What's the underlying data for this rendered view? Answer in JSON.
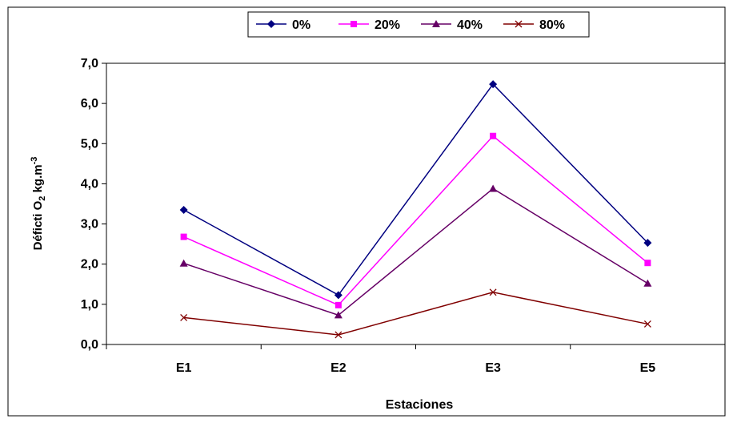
{
  "chart_data": {
    "type": "line",
    "categories": [
      "E1",
      "E2",
      "E3",
      "E5"
    ],
    "series": [
      {
        "name": "0%",
        "values": [
          3.35,
          1.23,
          6.48,
          2.53
        ],
        "color": "#000080",
        "marker": "diamond"
      },
      {
        "name": "20%",
        "values": [
          2.68,
          0.98,
          5.19,
          2.03
        ],
        "color": "#FF00FF",
        "marker": "square"
      },
      {
        "name": "40%",
        "values": [
          2.02,
          0.73,
          3.88,
          1.52
        ],
        "color": "#660066",
        "marker": "triangle"
      },
      {
        "name": "80%",
        "values": [
          0.67,
          0.24,
          1.3,
          0.51
        ],
        "color": "#800000",
        "marker": "x"
      }
    ],
    "yticks": [
      "0,0",
      "1,0",
      "2,0",
      "3,0",
      "4,0",
      "5,0",
      "6,0",
      "7,0"
    ],
    "ylim": [
      0,
      7
    ],
    "ylabel": {
      "main": "Déficti O",
      "sub": "2",
      "unit": " kg.m",
      "sup": "-3"
    },
    "xlabel": "Estaciones",
    "grid": false,
    "legend_position": "top"
  }
}
